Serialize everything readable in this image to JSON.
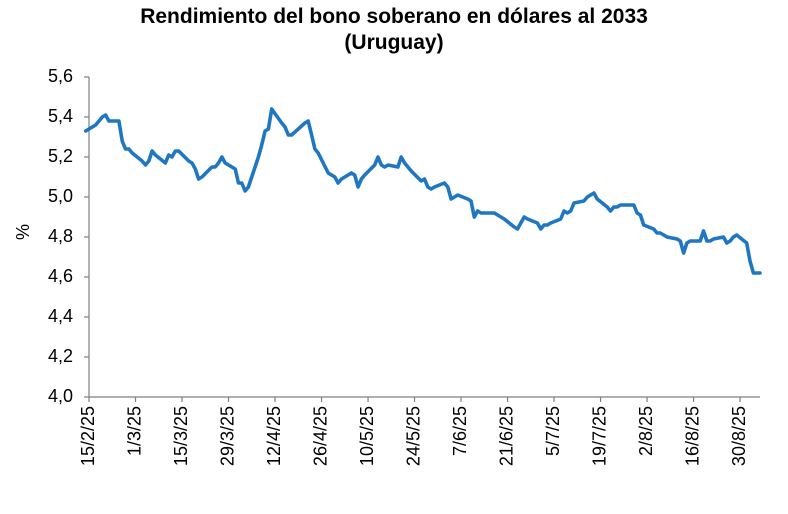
{
  "chart_data": {
    "type": "line",
    "title": "Rendimiento del bono soberano en dólares al 2033",
    "subtitle": "(Uruguay)",
    "ylabel": "%",
    "ylim": [
      4.0,
      5.6
    ],
    "y_ticks": [
      "4,0",
      "4,2",
      "4,4",
      "4,6",
      "4,8",
      "5,0",
      "5,2",
      "5,4",
      "5,6"
    ],
    "x_tick_labels": [
      "15/2/25",
      "1/3/25",
      "15/3/25",
      "29/3/25",
      "12/4/25",
      "26/4/25",
      "10/5/25",
      "24/5/25",
      "7/6/25",
      "21/6/25",
      "5/7/25",
      "19/7/25",
      "2/8/25",
      "16/8/25",
      "30/8/25"
    ],
    "x_range": [
      "2025-02-15",
      "2025-09-05"
    ],
    "grid": false,
    "legend": "none",
    "colors": {
      "line": "#1f77c4",
      "axis": "#7f7f7f"
    },
    "series": [
      {
        "x": [
          "2025-02-14",
          "2025-02-17",
          "2025-02-18",
          "2025-02-19",
          "2025-02-20",
          "2025-02-21",
          "2025-02-24",
          "2025-02-25",
          "2025-02-26",
          "2025-02-27",
          "2025-02-28",
          "2025-03-03",
          "2025-03-04",
          "2025-03-05",
          "2025-03-06",
          "2025-03-07",
          "2025-03-10",
          "2025-03-11",
          "2025-03-12",
          "2025-03-13",
          "2025-03-14",
          "2025-03-17",
          "2025-03-18",
          "2025-03-19",
          "2025-03-20",
          "2025-03-21",
          "2025-03-24",
          "2025-03-25",
          "2025-03-26",
          "2025-03-27",
          "2025-03-28",
          "2025-03-31",
          "2025-04-01",
          "2025-04-02",
          "2025-04-03",
          "2025-04-04",
          "2025-04-07",
          "2025-04-08",
          "2025-04-09",
          "2025-04-10",
          "2025-04-11",
          "2025-04-14",
          "2025-04-15",
          "2025-04-16",
          "2025-04-17",
          "2025-04-21",
          "2025-04-22",
          "2025-04-23",
          "2025-04-24",
          "2025-04-25",
          "2025-04-28",
          "2025-04-29",
          "2025-04-30",
          "2025-05-01",
          "2025-05-02",
          "2025-05-05",
          "2025-05-06",
          "2025-05-07",
          "2025-05-08",
          "2025-05-09",
          "2025-05-12",
          "2025-05-13",
          "2025-05-14",
          "2025-05-15",
          "2025-05-16",
          "2025-05-19",
          "2025-05-20",
          "2025-05-21",
          "2025-05-22",
          "2025-05-23",
          "2025-05-26",
          "2025-05-27",
          "2025-05-28",
          "2025-05-29",
          "2025-05-30",
          "2025-06-02",
          "2025-06-03",
          "2025-06-04",
          "2025-06-05",
          "2025-06-06",
          "2025-06-09",
          "2025-06-10",
          "2025-06-11",
          "2025-06-12",
          "2025-06-13",
          "2025-06-16",
          "2025-06-17",
          "2025-06-18",
          "2025-06-19",
          "2025-06-20",
          "2025-06-23",
          "2025-06-24",
          "2025-06-25",
          "2025-06-26",
          "2025-06-27",
          "2025-06-30",
          "2025-07-01",
          "2025-07-02",
          "2025-07-03",
          "2025-07-04",
          "2025-07-07",
          "2025-07-08",
          "2025-07-09",
          "2025-07-10",
          "2025-07-11",
          "2025-07-14",
          "2025-07-15",
          "2025-07-16",
          "2025-07-17",
          "2025-07-18",
          "2025-07-21",
          "2025-07-22",
          "2025-07-23",
          "2025-07-24",
          "2025-07-25",
          "2025-07-28",
          "2025-07-29",
          "2025-07-30",
          "2025-07-31",
          "2025-08-01",
          "2025-08-04",
          "2025-08-05",
          "2025-08-06",
          "2025-08-07",
          "2025-08-08",
          "2025-08-11",
          "2025-08-12",
          "2025-08-13",
          "2025-08-14",
          "2025-08-15",
          "2025-08-18",
          "2025-08-19",
          "2025-08-20",
          "2025-08-21",
          "2025-08-22",
          "2025-08-25",
          "2025-08-26",
          "2025-08-27",
          "2025-08-28",
          "2025-08-29",
          "2025-09-01",
          "2025-09-02",
          "2025-09-03",
          "2025-09-04",
          "2025-09-05"
        ],
        "values": [
          5.33,
          5.36,
          5.38,
          5.4,
          5.41,
          5.38,
          5.38,
          5.28,
          5.24,
          5.24,
          5.22,
          5.18,
          5.16,
          5.18,
          5.23,
          5.21,
          5.17,
          5.21,
          5.2,
          5.23,
          5.23,
          5.18,
          5.17,
          5.14,
          5.09,
          5.1,
          5.15,
          5.15,
          5.17,
          5.2,
          5.17,
          5.14,
          5.07,
          5.07,
          5.03,
          5.05,
          5.2,
          5.26,
          5.33,
          5.34,
          5.44,
          5.37,
          5.35,
          5.31,
          5.31,
          5.37,
          5.38,
          5.31,
          5.24,
          5.22,
          5.12,
          5.11,
          5.1,
          5.07,
          5.09,
          5.12,
          5.11,
          5.05,
          5.09,
          5.11,
          5.16,
          5.2,
          5.16,
          5.15,
          5.16,
          5.15,
          5.2,
          5.17,
          5.15,
          5.13,
          5.08,
          5.09,
          5.05,
          5.04,
          5.05,
          5.07,
          5.05,
          4.99,
          5.0,
          5.01,
          4.99,
          4.98,
          4.9,
          4.93,
          4.92,
          4.92,
          4.92,
          4.91,
          4.9,
          4.89,
          4.85,
          4.84,
          4.87,
          4.9,
          4.89,
          4.87,
          4.84,
          4.86,
          4.86,
          4.87,
          4.89,
          4.93,
          4.92,
          4.93,
          4.97,
          4.98,
          5.0,
          5.01,
          5.02,
          4.99,
          4.95,
          4.93,
          4.95,
          4.95,
          4.96,
          4.96,
          4.96,
          4.92,
          4.91,
          4.86,
          4.84,
          4.82,
          4.82,
          4.81,
          4.8,
          4.79,
          4.78,
          4.72,
          4.77,
          4.78,
          4.78,
          4.83,
          4.78,
          4.78,
          4.79,
          4.8,
          4.77,
          4.78,
          4.8,
          4.81,
          4.77,
          4.68,
          4.62,
          4.62,
          4.62
        ]
      }
    ]
  }
}
